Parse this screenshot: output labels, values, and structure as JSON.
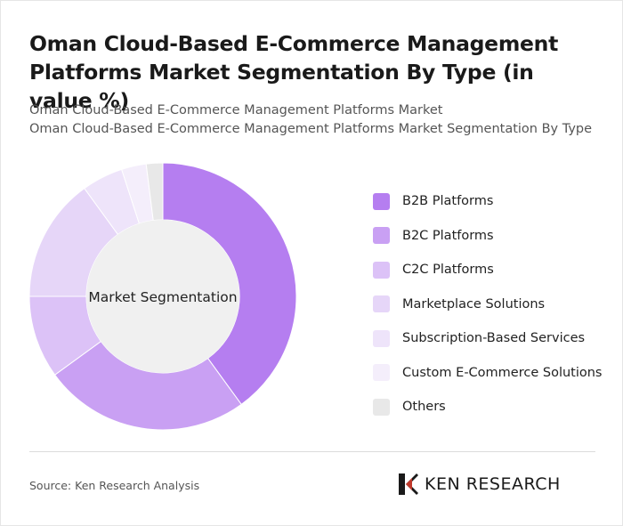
{
  "header": {
    "title": "Oman Cloud-Based E-Commerce Management Platforms Market Segmentation By Type (in value %)",
    "subtitle_line1": "Oman Cloud-Based E-Commerce Management Platforms Market",
    "subtitle_line2": "Oman Cloud-Based E-Commerce Management Platforms Market Segmentation By Type"
  },
  "chart_data": {
    "type": "pie",
    "donut": true,
    "center_label": "Market Segmentation",
    "legend_position": "right",
    "slices": [
      {
        "label": "B2B Platforms",
        "value": 40,
        "color": "#b57ef0"
      },
      {
        "label": "B2C Platforms",
        "value": 25,
        "color": "#c9a0f3"
      },
      {
        "label": "C2C Platforms",
        "value": 10,
        "color": "#dcc2f7"
      },
      {
        "label": "Marketplace Solutions",
        "value": 15,
        "color": "#e6d6f8"
      },
      {
        "label": "Subscription-Based Services",
        "value": 5,
        "color": "#eee4fa"
      },
      {
        "label": "Custom E-Commerce Solutions",
        "value": 3,
        "color": "#f4eefb"
      },
      {
        "label": "Others",
        "value": 2,
        "color": "#e8e8e8"
      }
    ]
  },
  "footer": {
    "source": "Source: Ken Research Analysis",
    "brand": "KEN RESEARCH"
  }
}
